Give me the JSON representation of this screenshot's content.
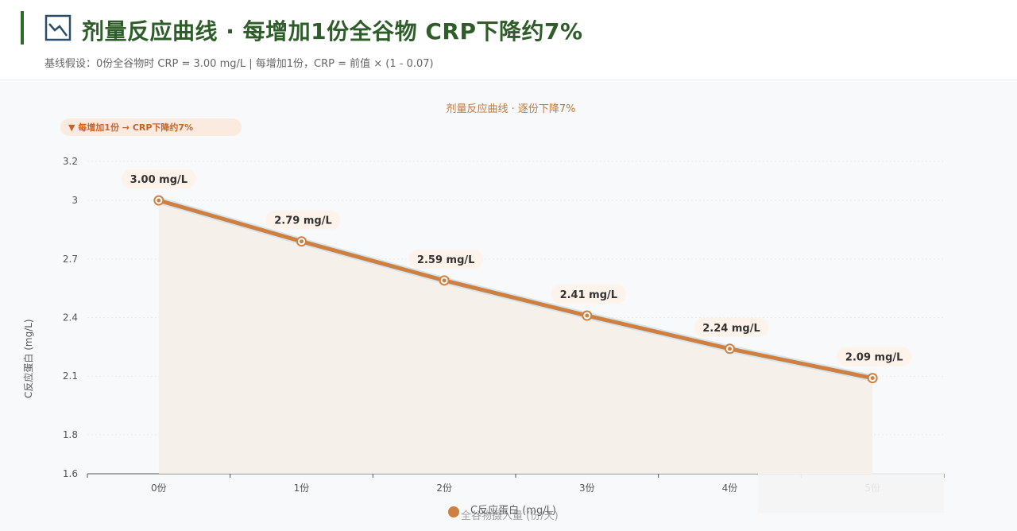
{
  "header": {
    "title": "剂量反应曲线 · 每增加1份全谷物 CRP下降约7%",
    "subtitle": "基线假设：0份全谷物时 CRP = 3.00 mg/L | 每增加1份，CRP = 前值 × (1 - 0.07)",
    "title_icon": "line-chart-icon",
    "accent_color": "#2f6b2f"
  },
  "chart_data": {
    "type": "line",
    "title": "剂量反应曲线 · 逐份下降7%",
    "annotation": "▼ 每增加1份 → CRP下降约7%",
    "categories": [
      "0份",
      "1份",
      "2份",
      "3份",
      "4份",
      "5份"
    ],
    "series": [
      {
        "name": "C反应蛋白 (mg/L)",
        "values": [
          3.0,
          2.79,
          2.59,
          2.41,
          2.24,
          2.09
        ],
        "labels": [
          "3.00 mg/L",
          "2.79 mg/L",
          "2.59 mg/L",
          "2.41 mg/L",
          "2.24 mg/L",
          "2.09 mg/L"
        ],
        "color": "#cf7f40"
      }
    ],
    "ylabel": "C反应蛋白 (mg/L)",
    "xlabel": "全谷物摄入量 (份/天)",
    "yticks": [
      "3.2",
      "3",
      "2.7",
      "2.4",
      "2.1",
      "1.8",
      "1.6"
    ],
    "ytick_values": [
      3.2,
      3.0,
      2.7,
      2.4,
      2.1,
      1.8,
      1.6
    ],
    "ylim": [
      1.6,
      3.2
    ],
    "grid": true,
    "legend_position": "bottom",
    "colors": {
      "line": "#cf7f40",
      "fill": "#f6efe6",
      "accent": "#c8642a"
    }
  }
}
